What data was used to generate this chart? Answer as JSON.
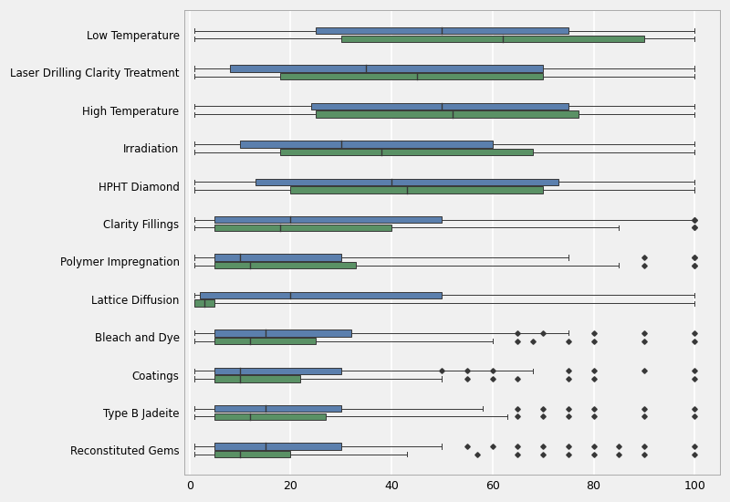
{
  "categories": [
    "Low Temperature",
    "Laser Drilling Clarity Treatment",
    "High Temperature",
    "Irradiation",
    "HPHT Diamond",
    "Clarity Fillings",
    "Polymer Impregnation",
    "Lattice Diffusion",
    "Bleach and Dye",
    "Coatings",
    "Type B Jadeite",
    "Reconstituted Gems"
  ],
  "blue_boxes": [
    {
      "whislo": 1,
      "q1": 25,
      "med": 50,
      "q3": 75,
      "whishi": 100,
      "fliers": []
    },
    {
      "whislo": 1,
      "q1": 8,
      "med": 35,
      "q3": 70,
      "whishi": 100,
      "fliers": []
    },
    {
      "whislo": 1,
      "q1": 24,
      "med": 50,
      "q3": 75,
      "whishi": 100,
      "fliers": []
    },
    {
      "whislo": 1,
      "q1": 10,
      "med": 30,
      "q3": 60,
      "whishi": 100,
      "fliers": []
    },
    {
      "whislo": 1,
      "q1": 13,
      "med": 40,
      "q3": 73,
      "whishi": 100,
      "fliers": []
    },
    {
      "whislo": 1,
      "q1": 5,
      "med": 20,
      "q3": 50,
      "whishi": 100,
      "fliers": [
        100,
        100
      ]
    },
    {
      "whislo": 1,
      "q1": 5,
      "med": 10,
      "q3": 30,
      "whishi": 75,
      "fliers": [
        90,
        100,
        100
      ]
    },
    {
      "whislo": 1,
      "q1": 2,
      "med": 20,
      "q3": 50,
      "whishi": 100,
      "fliers": []
    },
    {
      "whislo": 1,
      "q1": 5,
      "med": 15,
      "q3": 32,
      "whishi": 75,
      "fliers": [
        65,
        70,
        80,
        90,
        100
      ]
    },
    {
      "whislo": 1,
      "q1": 5,
      "med": 10,
      "q3": 30,
      "whishi": 68,
      "fliers": [
        50,
        55,
        60,
        75,
        80,
        90,
        100
      ]
    },
    {
      "whislo": 1,
      "q1": 5,
      "med": 15,
      "q3": 30,
      "whishi": 58,
      "fliers": [
        65,
        70,
        75,
        80,
        90,
        100
      ]
    },
    {
      "whislo": 1,
      "q1": 5,
      "med": 15,
      "q3": 30,
      "whishi": 50,
      "fliers": [
        55,
        60,
        65,
        70,
        75,
        80,
        85,
        90,
        100
      ]
    }
  ],
  "green_boxes": [
    {
      "whislo": 1,
      "q1": 30,
      "med": 62,
      "q3": 90,
      "whishi": 100,
      "fliers": []
    },
    {
      "whislo": 1,
      "q1": 18,
      "med": 45,
      "q3": 70,
      "whishi": 100,
      "fliers": []
    },
    {
      "whislo": 1,
      "q1": 25,
      "med": 52,
      "q3": 77,
      "whishi": 100,
      "fliers": []
    },
    {
      "whislo": 1,
      "q1": 18,
      "med": 38,
      "q3": 68,
      "whishi": 100,
      "fliers": []
    },
    {
      "whislo": 1,
      "q1": 20,
      "med": 43,
      "q3": 70,
      "whishi": 100,
      "fliers": []
    },
    {
      "whislo": 1,
      "q1": 5,
      "med": 18,
      "q3": 40,
      "whishi": 85,
      "fliers": [
        100,
        100
      ]
    },
    {
      "whislo": 1,
      "q1": 5,
      "med": 12,
      "q3": 33,
      "whishi": 85,
      "fliers": [
        90,
        100,
        100
      ]
    },
    {
      "whislo": 1,
      "q1": 1,
      "med": 3,
      "q3": 5,
      "whishi": 100,
      "fliers": []
    },
    {
      "whislo": 1,
      "q1": 5,
      "med": 12,
      "q3": 25,
      "whishi": 60,
      "fliers": [
        65,
        68,
        75,
        80,
        90,
        100
      ]
    },
    {
      "whislo": 1,
      "q1": 5,
      "med": 10,
      "q3": 22,
      "whishi": 50,
      "fliers": [
        55,
        60,
        65,
        75,
        80,
        100
      ]
    },
    {
      "whislo": 1,
      "q1": 5,
      "med": 12,
      "q3": 27,
      "whishi": 63,
      "fliers": [
        65,
        70,
        75,
        80,
        90,
        100
      ]
    },
    {
      "whislo": 1,
      "q1": 5,
      "med": 10,
      "q3": 20,
      "whishi": 43,
      "fliers": [
        57,
        65,
        70,
        75,
        80,
        85,
        90,
        100
      ]
    }
  ],
  "blue_color": "#5b7fad",
  "green_color": "#5a9165",
  "background_color": "#f0f0f0",
  "grid_color": "#ffffff",
  "xlim": [
    -1,
    105
  ],
  "xticks": [
    0,
    20,
    40,
    60,
    80,
    100
  ]
}
